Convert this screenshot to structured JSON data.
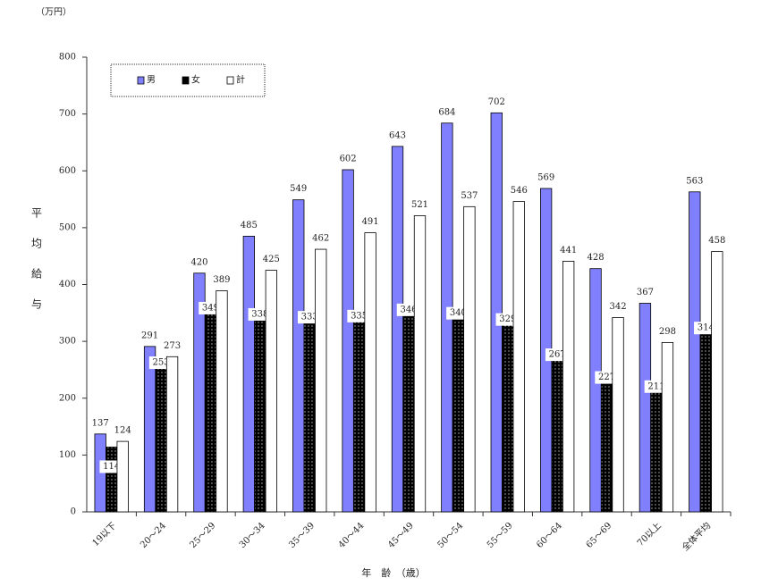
{
  "chart_data": {
    "type": "bar",
    "unit_label": "（万円）",
    "ylabel": "平均給与",
    "xlabel": "年　齢　（歳）",
    "categories": [
      "19以下",
      "20～24",
      "25～29",
      "30～34",
      "35～39",
      "40～44",
      "45～49",
      "50～54",
      "55～59",
      "60～64",
      "65～69",
      "70以上",
      "全体平均"
    ],
    "series": [
      {
        "name": "男",
        "color": "#8080ff",
        "values": [
          137,
          291,
          420,
          485,
          549,
          602,
          643,
          684,
          702,
          569,
          428,
          367,
          563
        ]
      },
      {
        "name": "女",
        "color": "#000000",
        "values": [
          114,
          253,
          349,
          338,
          333,
          335,
          346,
          340,
          329,
          267,
          227,
          211,
          314
        ]
      },
      {
        "name": "計",
        "color": "#ffffff",
        "values": [
          124,
          273,
          389,
          425,
          462,
          491,
          521,
          537,
          546,
          441,
          342,
          298,
          458
        ]
      }
    ],
    "ylim": [
      0,
      800
    ],
    "yticks": [
      0,
      100,
      200,
      300,
      400,
      500,
      600,
      700,
      800
    ]
  }
}
